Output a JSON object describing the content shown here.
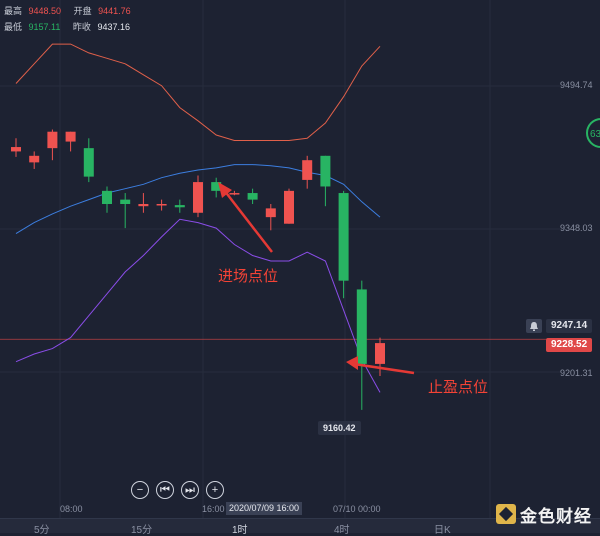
{
  "ohlc": {
    "high_label": "最高",
    "high_value": "9448.50",
    "open_label": "开盘",
    "open_value": "9441.76",
    "low_label": "最低",
    "low_value": "9157.11",
    "prev_close_label": "昨收",
    "prev_close_value": "9437.16"
  },
  "price_axis": {
    "tick_top": "9494.74",
    "tick_mid": "9348.03",
    "tick_low": "9201.31",
    "bell_price": "9247.14",
    "current_price": "9228.52",
    "low_marker": "9160.42"
  },
  "annotations": {
    "entry": "进场点位",
    "take_profit": "止盈点位"
  },
  "time_axis": {
    "t1": "08:00",
    "t2": "16:00",
    "cursor": "2020/07/09 16:00",
    "t3": "07/10 00:00"
  },
  "timeframes": [
    {
      "label": "5分"
    },
    {
      "label": "15分"
    },
    {
      "label": "1时"
    },
    {
      "label": "4时"
    },
    {
      "label": "日K"
    }
  ],
  "active_timeframe": "1时",
  "logo_text": "金色财经",
  "side_circle": "63",
  "colors": {
    "up": "#ef5350",
    "down": "#28b463",
    "ma": "#3c7ee0",
    "band_upper": "#e0604a",
    "band_lower": "#8a4de8",
    "current": "#e04848"
  },
  "chart_data": {
    "type": "candlestick",
    "ylim": [
      9100,
      9520
    ],
    "candles": [
      {
        "o": 9400,
        "h": 9412,
        "l": 9395,
        "c": 9404
      },
      {
        "o": 9390,
        "h": 9400,
        "l": 9384,
        "c": 9396
      },
      {
        "o": 9403,
        "h": 9420,
        "l": 9392,
        "c": 9418
      },
      {
        "o": 9409,
        "h": 9418,
        "l": 9400,
        "c": 9418
      },
      {
        "o": 9403,
        "h": 9412,
        "l": 9372,
        "c": 9377
      },
      {
        "o": 9364,
        "h": 9368,
        "l": 9344,
        "c": 9352
      },
      {
        "o": 9356,
        "h": 9362,
        "l": 9330,
        "c": 9352
      },
      {
        "o": 9350,
        "h": 9362,
        "l": 9344,
        "c": 9352
      },
      {
        "o": 9352,
        "h": 9356,
        "l": 9346,
        "c": 9352
      },
      {
        "o": 9351,
        "h": 9356,
        "l": 9344,
        "c": 9349
      },
      {
        "o": 9344,
        "h": 9378,
        "l": 9340,
        "c": 9372
      },
      {
        "o": 9372,
        "h": 9376,
        "l": 9358,
        "c": 9364
      },
      {
        "o": 9362,
        "h": 9364,
        "l": 9360,
        "c": 9362
      },
      {
        "o": 9362,
        "h": 9366,
        "l": 9352,
        "c": 9356
      },
      {
        "o": 9340,
        "h": 9352,
        "l": 9328,
        "c": 9348
      },
      {
        "o": 9334,
        "h": 9366,
        "l": 9334,
        "c": 9364
      },
      {
        "o": 9374,
        "h": 9396,
        "l": 9366,
        "c": 9392
      },
      {
        "o": 9396,
        "h": 9396,
        "l": 9350,
        "c": 9368
      },
      {
        "o": 9362,
        "h": 9364,
        "l": 9266,
        "c": 9282
      },
      {
        "o": 9274,
        "h": 9282,
        "l": 9164,
        "c": 9206
      },
      {
        "o": 9206,
        "h": 9230,
        "l": 9195,
        "c": 9225
      }
    ],
    "ma": [
      9325,
      9335,
      9343,
      9350,
      9356,
      9362,
      9366,
      9370,
      9376,
      9380,
      9383,
      9385,
      9388,
      9388,
      9387,
      9385,
      9381,
      9378,
      9370,
      9354,
      9340
    ],
    "band_upper": [
      9462,
      9480,
      9498,
      9498,
      9490,
      9485,
      9480,
      9470,
      9460,
      9440,
      9428,
      9415,
      9410,
      9410,
      9410,
      9410,
      9412,
      9426,
      9450,
      9478,
      9496
    ],
    "band_lower": [
      9208,
      9215,
      9220,
      9230,
      9250,
      9270,
      9290,
      9305,
      9322,
      9338,
      9335,
      9330,
      9315,
      9305,
      9300,
      9300,
      9308,
      9300,
      9255,
      9210,
      9180
    ]
  }
}
